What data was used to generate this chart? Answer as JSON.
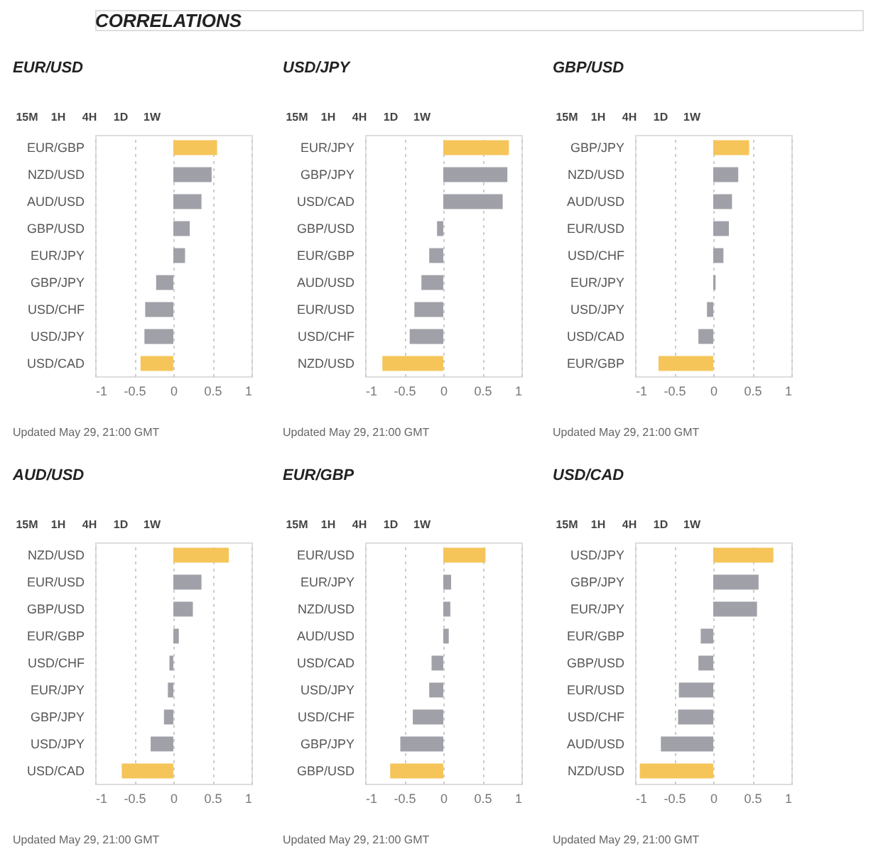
{
  "chart_data": [
    {
      "type": "other",
      "title": "CORRELATIONS"
    },
    {
      "type": "bar",
      "title": "EUR/USD",
      "orientation": "horizontal",
      "grid": "x",
      "xlim": [
        -1,
        1
      ],
      "xticks": [
        -1,
        -0.5,
        0,
        0.5,
        1
      ],
      "categories": [
        "EUR/GBP",
        "NZD/USD",
        "AUD/USD",
        "GBP/USD",
        "EUR/JPY",
        "GBP/JPY",
        "USD/CHF",
        "USD/JPY",
        "USD/CAD"
      ],
      "values": [
        0.56,
        0.49,
        0.36,
        0.21,
        0.15,
        -0.22,
        -0.36,
        -0.37,
        -0.42
      ],
      "colors": [
        "#f5c55a",
        "#a0a0a8",
        "#a0a0a8",
        "#a0a0a8",
        "#a0a0a8",
        "#a0a0a8",
        "#a0a0a8",
        "#a0a0a8",
        "#f5c55a"
      ],
      "annotations": [
        "15M",
        "1H",
        "4H",
        "1D",
        "1W",
        "Updated May 29, 21:00 GMT"
      ]
    },
    {
      "type": "bar",
      "title": "USD/JPY",
      "orientation": "horizontal",
      "grid": "x",
      "xlim": [
        -1,
        1
      ],
      "xticks": [
        -1,
        -0.5,
        0,
        0.5,
        1
      ],
      "categories": [
        "EUR/JPY",
        "GBP/JPY",
        "USD/CAD",
        "GBP/USD",
        "EUR/GBP",
        "AUD/USD",
        "EUR/USD",
        "USD/CHF",
        "NZD/USD"
      ],
      "values": [
        0.84,
        0.82,
        0.76,
        -0.08,
        -0.18,
        -0.28,
        -0.37,
        -0.43,
        -0.78
      ],
      "colors": [
        "#f5c55a",
        "#a0a0a8",
        "#a0a0a8",
        "#a0a0a8",
        "#a0a0a8",
        "#a0a0a8",
        "#a0a0a8",
        "#a0a0a8",
        "#f5c55a"
      ],
      "annotations": [
        "15M",
        "1H",
        "4H",
        "1D",
        "1W",
        "Updated May 29, 21:00 GMT"
      ]
    },
    {
      "type": "bar",
      "title": "GBP/USD",
      "orientation": "horizontal",
      "grid": "x",
      "xlim": [
        -1,
        1
      ],
      "xticks": [
        -1,
        -0.5,
        0,
        0.5,
        1
      ],
      "categories": [
        "GBP/JPY",
        "NZD/USD",
        "AUD/USD",
        "EUR/USD",
        "USD/CHF",
        "EUR/JPY",
        "USD/JPY",
        "USD/CAD",
        "EUR/GBP"
      ],
      "values": [
        0.46,
        0.32,
        0.24,
        0.2,
        0.13,
        0.03,
        -0.08,
        -0.19,
        -0.7
      ],
      "colors": [
        "#f5c55a",
        "#a0a0a8",
        "#a0a0a8",
        "#a0a0a8",
        "#a0a0a8",
        "#a0a0a8",
        "#a0a0a8",
        "#a0a0a8",
        "#f5c55a"
      ],
      "annotations": [
        "15M",
        "1H",
        "4H",
        "1D",
        "1W",
        "Updated May 29, 21:00 GMT"
      ]
    },
    {
      "type": "bar",
      "title": "AUD/USD",
      "orientation": "horizontal",
      "grid": "x",
      "xlim": [
        -1,
        1
      ],
      "xticks": [
        -1,
        -0.5,
        0,
        0.5,
        1
      ],
      "categories": [
        "NZD/USD",
        "EUR/USD",
        "GBP/USD",
        "EUR/GBP",
        "USD/CHF",
        "EUR/JPY",
        "GBP/JPY",
        "USD/JPY",
        "USD/CAD"
      ],
      "values": [
        0.71,
        0.36,
        0.25,
        0.07,
        -0.05,
        -0.07,
        -0.12,
        -0.29,
        -0.66
      ],
      "colors": [
        "#f5c55a",
        "#a0a0a8",
        "#a0a0a8",
        "#a0a0a8",
        "#a0a0a8",
        "#a0a0a8",
        "#a0a0a8",
        "#a0a0a8",
        "#f5c55a"
      ],
      "annotations": [
        "15M",
        "1H",
        "4H",
        "1D",
        "1W",
        "Updated May 29, 21:00 GMT"
      ]
    },
    {
      "type": "bar",
      "title": "EUR/GBP",
      "orientation": "horizontal",
      "grid": "x",
      "xlim": [
        -1,
        1
      ],
      "xticks": [
        -1,
        -0.5,
        0,
        0.5,
        1
      ],
      "categories": [
        "EUR/USD",
        "EUR/JPY",
        "NZD/USD",
        "AUD/USD",
        "USD/CAD",
        "USD/JPY",
        "USD/CHF",
        "GBP/JPY",
        "GBP/USD"
      ],
      "values": [
        0.54,
        0.1,
        0.09,
        0.07,
        -0.15,
        -0.18,
        -0.39,
        -0.55,
        -0.68
      ],
      "colors": [
        "#f5c55a",
        "#a0a0a8",
        "#a0a0a8",
        "#a0a0a8",
        "#a0a0a8",
        "#a0a0a8",
        "#a0a0a8",
        "#a0a0a8",
        "#f5c55a"
      ],
      "annotations": [
        "15M",
        "1H",
        "4H",
        "1D",
        "1W",
        "Updated May 29, 21:00 GMT"
      ]
    },
    {
      "type": "bar",
      "title": "USD/CAD",
      "orientation": "horizontal",
      "grid": "x",
      "xlim": [
        -1,
        1
      ],
      "xticks": [
        -1,
        -0.5,
        0,
        0.5,
        1
      ],
      "categories": [
        "USD/JPY",
        "GBP/JPY",
        "EUR/JPY",
        "EUR/GBP",
        "GBP/USD",
        "EUR/USD",
        "USD/CHF",
        "AUD/USD",
        "NZD/USD"
      ],
      "values": [
        0.77,
        0.58,
        0.56,
        -0.16,
        -0.19,
        -0.44,
        -0.45,
        -0.67,
        -0.94
      ],
      "colors": [
        "#f5c55a",
        "#a0a0a8",
        "#a0a0a8",
        "#a0a0a8",
        "#a0a0a8",
        "#a0a0a8",
        "#a0a0a8",
        "#a0a0a8",
        "#f5c55a"
      ],
      "annotations": [
        "15M",
        "1H",
        "4H",
        "1D",
        "1W",
        "Updated May 29, 21:00 GMT"
      ]
    }
  ]
}
